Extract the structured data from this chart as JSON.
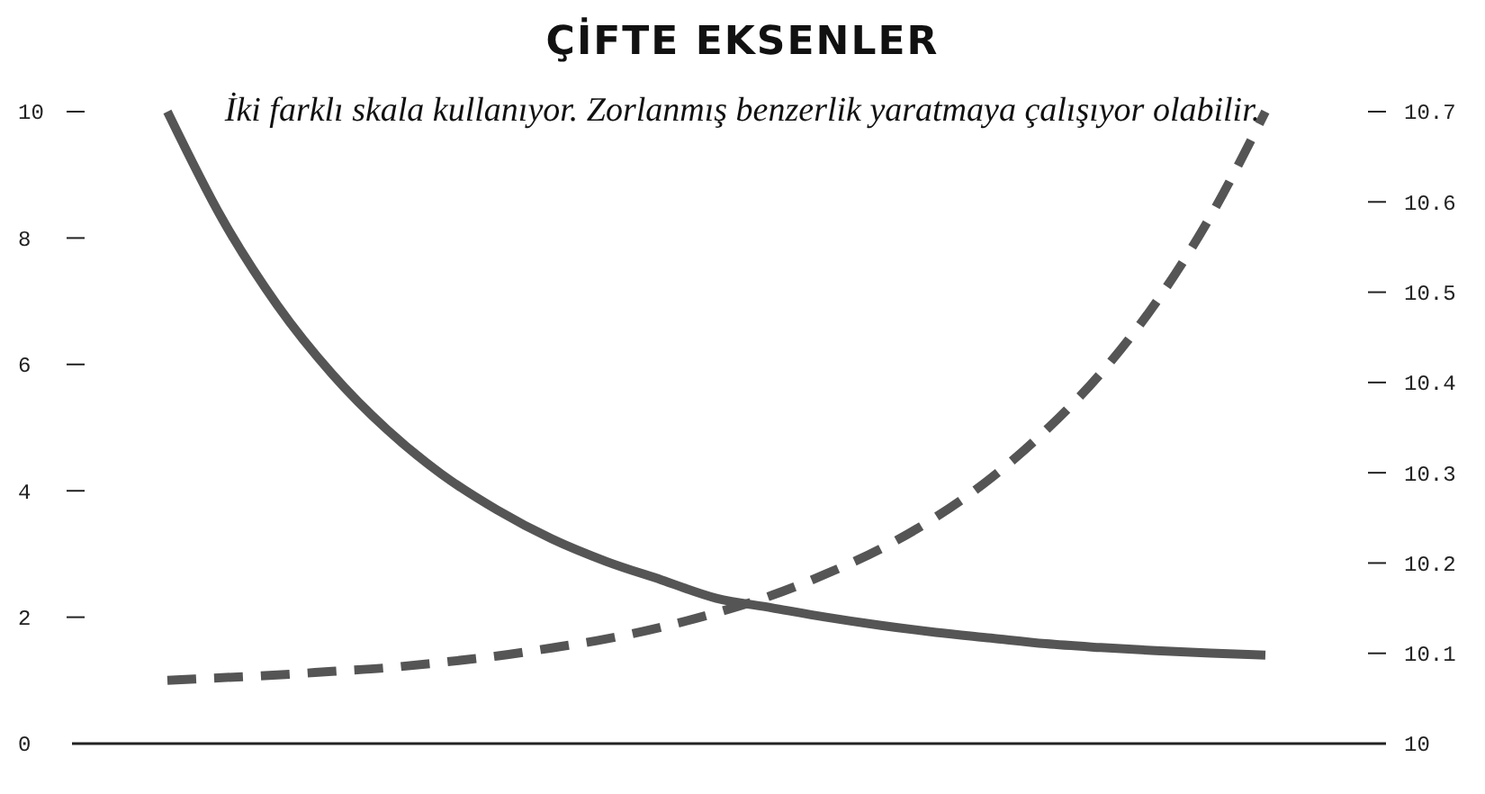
{
  "chart_data": {
    "type": "line",
    "title": "ÇİFTE EKSENLER",
    "subtitle": "İki farklı skala kullanıyor. Zorlanmış benzerlik yaratmaya çalışıyor olabilir.",
    "categories": [
      null,
      null,
      null,
      null,
      null,
      null,
      null,
      null,
      null,
      null,
      null,
      null,
      null,
      null,
      null,
      null,
      null,
      null,
      null,
      null,
      null
    ],
    "series": [
      {
        "color": "#555555",
        "line_style": "solid",
        "values": [
          10.0,
          8.3,
          6.94,
          5.85,
          4.97,
          4.26,
          3.7,
          3.24,
          2.88,
          2.59,
          2.3,
          2.15,
          2.0,
          1.87,
          1.76,
          1.67,
          1.58,
          1.52,
          1.47,
          1.43,
          1.4
        ]
      },
      {
        "color": "#555555",
        "line_style": "dashed",
        "axis": "y2",
        "values": [
          10.07,
          10.073,
          10.076,
          10.08,
          10.084,
          10.09,
          10.097,
          10.106,
          10.116,
          10.129,
          10.145,
          10.164,
          10.188,
          10.216,
          10.251,
          10.294,
          10.347,
          10.41,
          10.488,
          10.584,
          10.7
        ]
      }
    ],
    "ylim": [
      0,
      10
    ],
    "yticks": [
      0,
      2,
      4,
      6,
      8,
      10
    ],
    "y2lim": [
      10,
      10.7
    ],
    "y2ticks": [
      10,
      10.1,
      10.2,
      10.3,
      10.4,
      10.5,
      10.6,
      10.7
    ]
  }
}
